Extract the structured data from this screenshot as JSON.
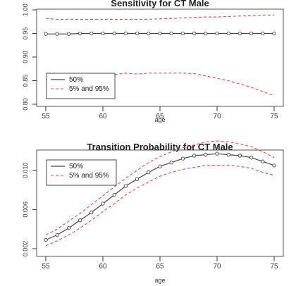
{
  "colors": {
    "median": "#444444",
    "band": "#e8454a",
    "axis": "#333333",
    "frame": "#555555"
  },
  "chart_data": [
    {
      "type": "line",
      "title": "Sensitivity for CT Male",
      "xlabel": "age",
      "ylabel": "",
      "xlim": [
        55,
        75
      ],
      "ylim": [
        0.8,
        1.0
      ],
      "xticks": [
        "55",
        "60",
        "65",
        "70",
        "75"
      ],
      "yticks": [
        "0.80",
        "0.85",
        "0.90",
        "0.95",
        "1.00"
      ],
      "legend": {
        "position": "bottom-left",
        "entries": [
          "50%",
          "5% and 95%"
        ]
      },
      "x": [
        55,
        56,
        57,
        58,
        59,
        60,
        61,
        62,
        63,
        64,
        65,
        66,
        67,
        68,
        69,
        70,
        71,
        72,
        73,
        74,
        75
      ],
      "series": [
        {
          "name": "50%",
          "style": "solid-with-markers",
          "values": [
            0.949,
            0.949,
            0.949,
            0.95,
            0.95,
            0.95,
            0.95,
            0.95,
            0.95,
            0.95,
            0.95,
            0.95,
            0.95,
            0.95,
            0.95,
            0.95,
            0.95,
            0.95,
            0.95,
            0.95,
            0.95
          ]
        },
        {
          "name": "5% and 95%",
          "style": "dashed",
          "values": [
            0.982,
            0.98,
            0.98,
            0.98,
            0.98,
            0.98,
            0.98,
            0.98,
            0.98,
            0.98,
            0.981,
            0.982,
            0.983,
            0.984,
            0.985,
            0.985,
            0.986,
            0.987,
            0.988,
            0.989,
            0.989
          ]
        },
        {
          "name": "5% and 95%",
          "style": "dashed",
          "values": [
            0.852,
            0.856,
            0.859,
            0.861,
            0.862,
            0.863,
            0.863,
            0.866,
            0.864,
            0.866,
            0.866,
            0.866,
            0.866,
            0.865,
            0.86,
            0.855,
            0.85,
            0.843,
            0.836,
            0.827,
            0.818
          ]
        }
      ]
    },
    {
      "type": "line",
      "title": "Transition Probability for CT Male",
      "xlabel": "age",
      "ylabel": "",
      "xlim": [
        55,
        75
      ],
      "ylim": [
        0.002,
        0.012
      ],
      "xticks": [
        "55",
        "60",
        "65",
        "70",
        "75"
      ],
      "yticks": [
        "0.002",
        "0.006",
        "0.010"
      ],
      "legend": {
        "position": "top-left",
        "entries": [
          "50%",
          "5% and 95%"
        ]
      },
      "x": [
        55,
        56,
        57,
        58,
        59,
        60,
        61,
        62,
        63,
        64,
        65,
        66,
        67,
        68,
        69,
        70,
        71,
        72,
        73,
        74,
        75
      ],
      "series": [
        {
          "name": "50%",
          "style": "solid-with-markers",
          "values": [
            0.0029,
            0.0034,
            0.0041,
            0.0049,
            0.0057,
            0.0066,
            0.0075,
            0.0084,
            0.0091,
            0.0098,
            0.0104,
            0.0108,
            0.0112,
            0.0115,
            0.0116,
            0.0117,
            0.0116,
            0.0115,
            0.0113,
            0.0109,
            0.0105
          ]
        },
        {
          "name": "5% and 95%",
          "style": "dashed",
          "values": [
            0.0034,
            0.004,
            0.0048,
            0.0056,
            0.0065,
            0.0074,
            0.0083,
            0.0092,
            0.01,
            0.0108,
            0.0114,
            0.0119,
            0.0123,
            0.0126,
            0.0129,
            0.013,
            0.0129,
            0.0127,
            0.0124,
            0.0119,
            0.0113
          ]
        },
        {
          "name": "5% and 95%",
          "style": "dashed",
          "values": [
            0.0023,
            0.0028,
            0.0034,
            0.0041,
            0.0049,
            0.0058,
            0.0066,
            0.0075,
            0.0082,
            0.0088,
            0.0094,
            0.0098,
            0.0101,
            0.0103,
            0.0105,
            0.0105,
            0.0105,
            0.0104,
            0.0102,
            0.0098,
            0.0095
          ]
        }
      ]
    }
  ]
}
